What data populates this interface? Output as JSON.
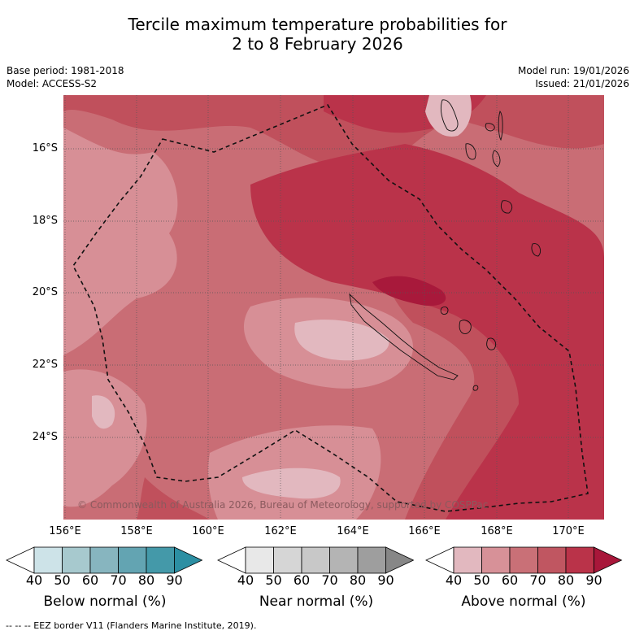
{
  "title": {
    "line1": "Tercile maximum temperature probabilities for",
    "line2": "2 to 8 February 2026"
  },
  "meta": {
    "base_period": "Base period: 1981-2018",
    "model": "Model: ACCESS-S2",
    "model_run": "Model run: 19/01/2026",
    "issued": "Issued: 21/01/2026"
  },
  "axes": {
    "lat_labels": [
      "16°S",
      "18°S",
      "20°S",
      "22°S",
      "24°S"
    ],
    "lon_labels": [
      "156°E",
      "158°E",
      "160°E",
      "162°E",
      "164°E",
      "166°E",
      "168°E",
      "170°E"
    ]
  },
  "credit": "© Commonwealth of Australia 2026, Bureau of Meteorology, supported by COSPPac",
  "colorbars": [
    {
      "name": "below",
      "title": "Below normal (%)",
      "ticks": [
        "40",
        "50",
        "60",
        "70",
        "80",
        "90"
      ],
      "colors": [
        "#ffffff",
        "#cde3e8",
        "#a7c9ce",
        "#87b5bf",
        "#63a4b2",
        "#4499a9",
        "#2c8fa3"
      ]
    },
    {
      "name": "near",
      "title": "Near normal (%)",
      "ticks": [
        "40",
        "50",
        "60",
        "70",
        "80",
        "90"
      ],
      "colors": [
        "#ffffff",
        "#e8e8e8",
        "#d6d6d6",
        "#c8c8c8",
        "#b4b4b4",
        "#9e9e9e",
        "#878787"
      ]
    },
    {
      "name": "above",
      "title": "Above normal (%)",
      "ticks": [
        "40",
        "50",
        "60",
        "70",
        "80",
        "90"
      ],
      "colors": [
        "#ffffff",
        "#e2b8bf",
        "#d79198",
        "#c97077",
        "#c05661",
        "#ba3349",
        "#a8173a"
      ]
    }
  ],
  "footnote": "-- -- -- EEZ border V11 (Flanders Marine Institute, 2019)."
}
